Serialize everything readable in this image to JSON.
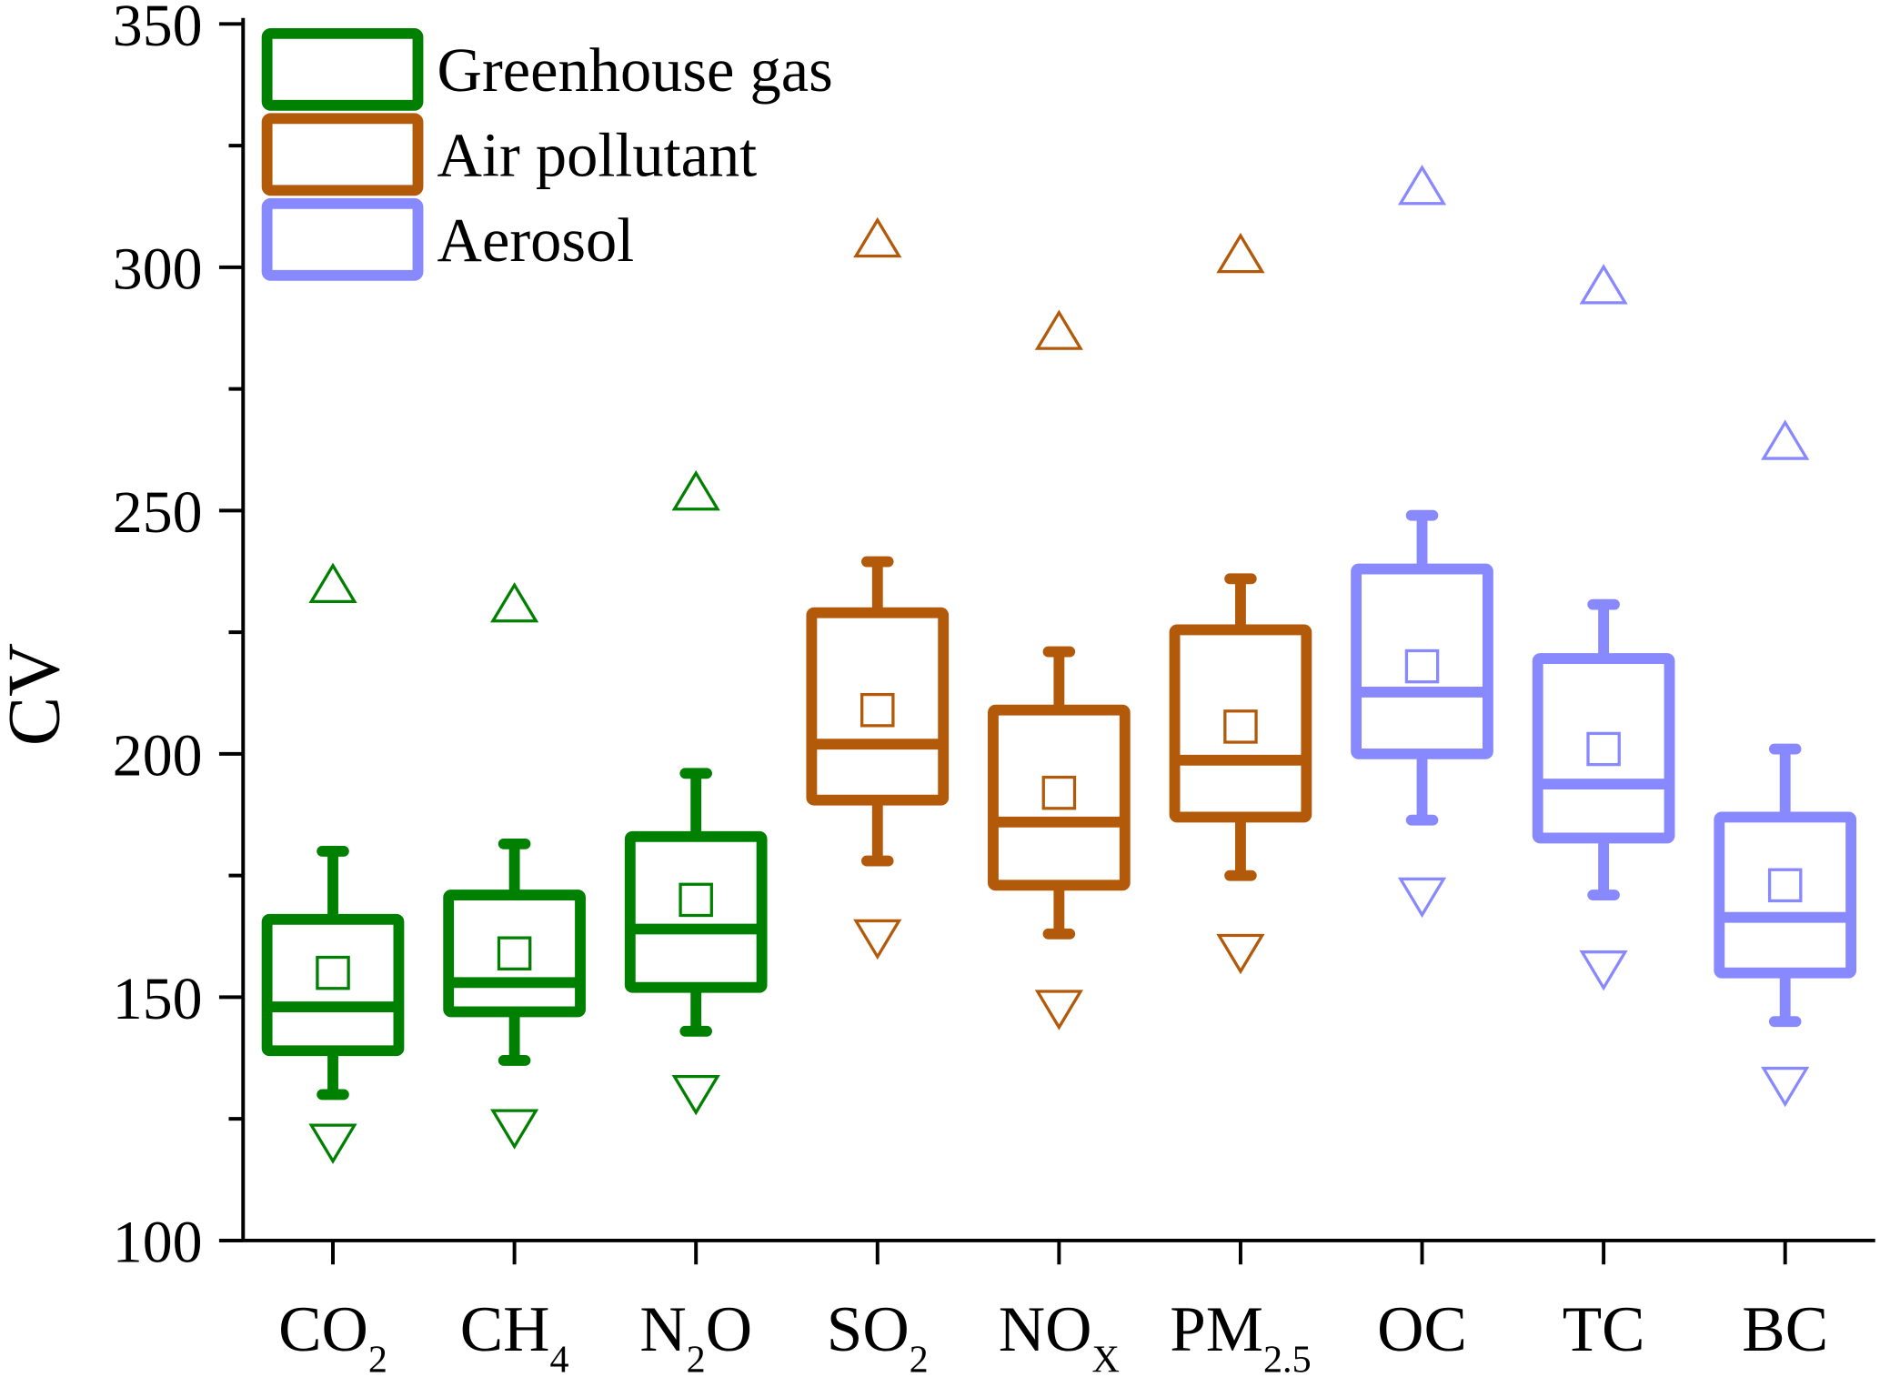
{
  "chart_data": {
    "type": "box",
    "title": "",
    "xlabel": "",
    "ylabel": "CV",
    "ylim": [
      100,
      350
    ],
    "yticks": [
      100,
      150,
      200,
      250,
      300,
      350
    ],
    "grid": false,
    "legend": {
      "placement": "top-left",
      "entries": [
        {
          "label": "Greenhouse gas",
          "color": "#008000"
        },
        {
          "label": "Air pollutant",
          "color": "#B35A0A"
        },
        {
          "label": "Aerosol",
          "color": "#8888FF"
        }
      ]
    },
    "categories": [
      {
        "base": "CO",
        "sub": "2",
        "group": 0,
        "whisker_low": 130,
        "q1": 139,
        "median": 148,
        "q3": 166,
        "whisker_high": 180,
        "mean": 155,
        "max": 235,
        "min": 120
      },
      {
        "base": "CH",
        "sub": "4",
        "group": 0,
        "whisker_low": 137,
        "q1": 147,
        "median": 153,
        "q3": 171,
        "whisker_high": 181.5,
        "mean": 159,
        "max": 231,
        "min": 123
      },
      {
        "base": "N",
        "sub": "2",
        "tail": "O",
        "group": 0,
        "whisker_low": 143,
        "q1": 152,
        "median": 164,
        "q3": 183,
        "whisker_high": 196,
        "mean": 170,
        "max": 254,
        "min": 130
      },
      {
        "base": "SO",
        "sub": "2",
        "group": 1,
        "whisker_low": 178,
        "q1": 190.5,
        "median": 202,
        "q3": 229,
        "whisker_high": 239.5,
        "mean": 209,
        "max": 306,
        "min": 162
      },
      {
        "base": "NO",
        "sub": "X",
        "group": 1,
        "whisker_low": 163,
        "q1": 173,
        "median": 186,
        "q3": 209,
        "whisker_high": 221,
        "mean": 192,
        "max": 287,
        "min": 147.5
      },
      {
        "base": "PM",
        "sub": "2.5",
        "group": 1,
        "whisker_low": 175,
        "q1": 187,
        "median": 198.7,
        "q3": 225.5,
        "whisker_high": 236,
        "mean": 205.6,
        "max": 302.8,
        "min": 159
      },
      {
        "base": "OC",
        "sub": "",
        "group": 2,
        "whisker_low": 186.4,
        "q1": 200,
        "median": 212.7,
        "q3": 238,
        "whisker_high": 249,
        "mean": 218,
        "max": 316.8,
        "min": 170.6
      },
      {
        "base": "TC",
        "sub": "",
        "group": 2,
        "whisker_low": 171,
        "q1": 182.7,
        "median": 193.8,
        "q3": 219.6,
        "whisker_high": 230.7,
        "mean": 201,
        "max": 296.4,
        "min": 155.6
      },
      {
        "base": "BC",
        "sub": "",
        "group": 2,
        "whisker_low": 145,
        "q1": 155,
        "median": 166.4,
        "q3": 187,
        "whisker_high": 201,
        "mean": 173,
        "max": 264.4,
        "min": 131.7
      }
    ]
  }
}
